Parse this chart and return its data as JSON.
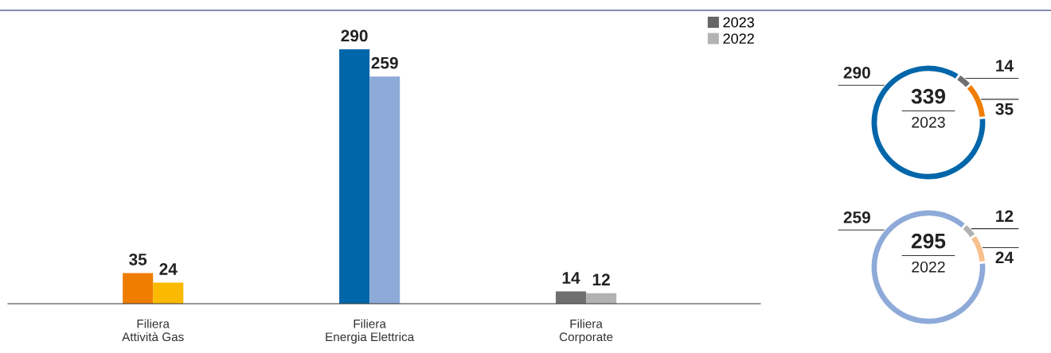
{
  "chart_data": [
    {
      "type": "bar",
      "categories": [
        "Filiera\nAttività Gas",
        "Filiera\nEnergia Elettrica",
        "Filiera\nCorporate"
      ],
      "data_labels": true,
      "legend": "top right",
      "grid": false,
      "series": [
        {
          "name": "2023",
          "color": "#666666",
          "colors": [
            "#ef7d00",
            "#0066aa",
            "#6f6f6f"
          ],
          "values": [
            35,
            290,
            14
          ]
        },
        {
          "name": "2022",
          "color": "#b3b3b3",
          "colors": [
            "#fbb900",
            "#8eaad8",
            "#b2b2b2"
          ],
          "values": [
            24,
            259,
            12
          ]
        }
      ]
    },
    {
      "type": "donut",
      "categories": [
        null,
        null,
        null
      ],
      "values": [
        290,
        14,
        35
      ],
      "colors": [
        "#0066aa",
        "#6f6f6f",
        "#ef7d00"
      ],
      "data_labels": true,
      "annotations": [
        "339",
        "2023"
      ]
    },
    {
      "type": "donut",
      "categories": [
        null,
        null,
        null
      ],
      "values": [
        259,
        12,
        24
      ],
      "colors": [
        "#8eaad8",
        "#b2b2b2",
        "#f7c08c"
      ],
      "data_labels": true,
      "annotations": [
        "295",
        "2022"
      ]
    }
  ]
}
